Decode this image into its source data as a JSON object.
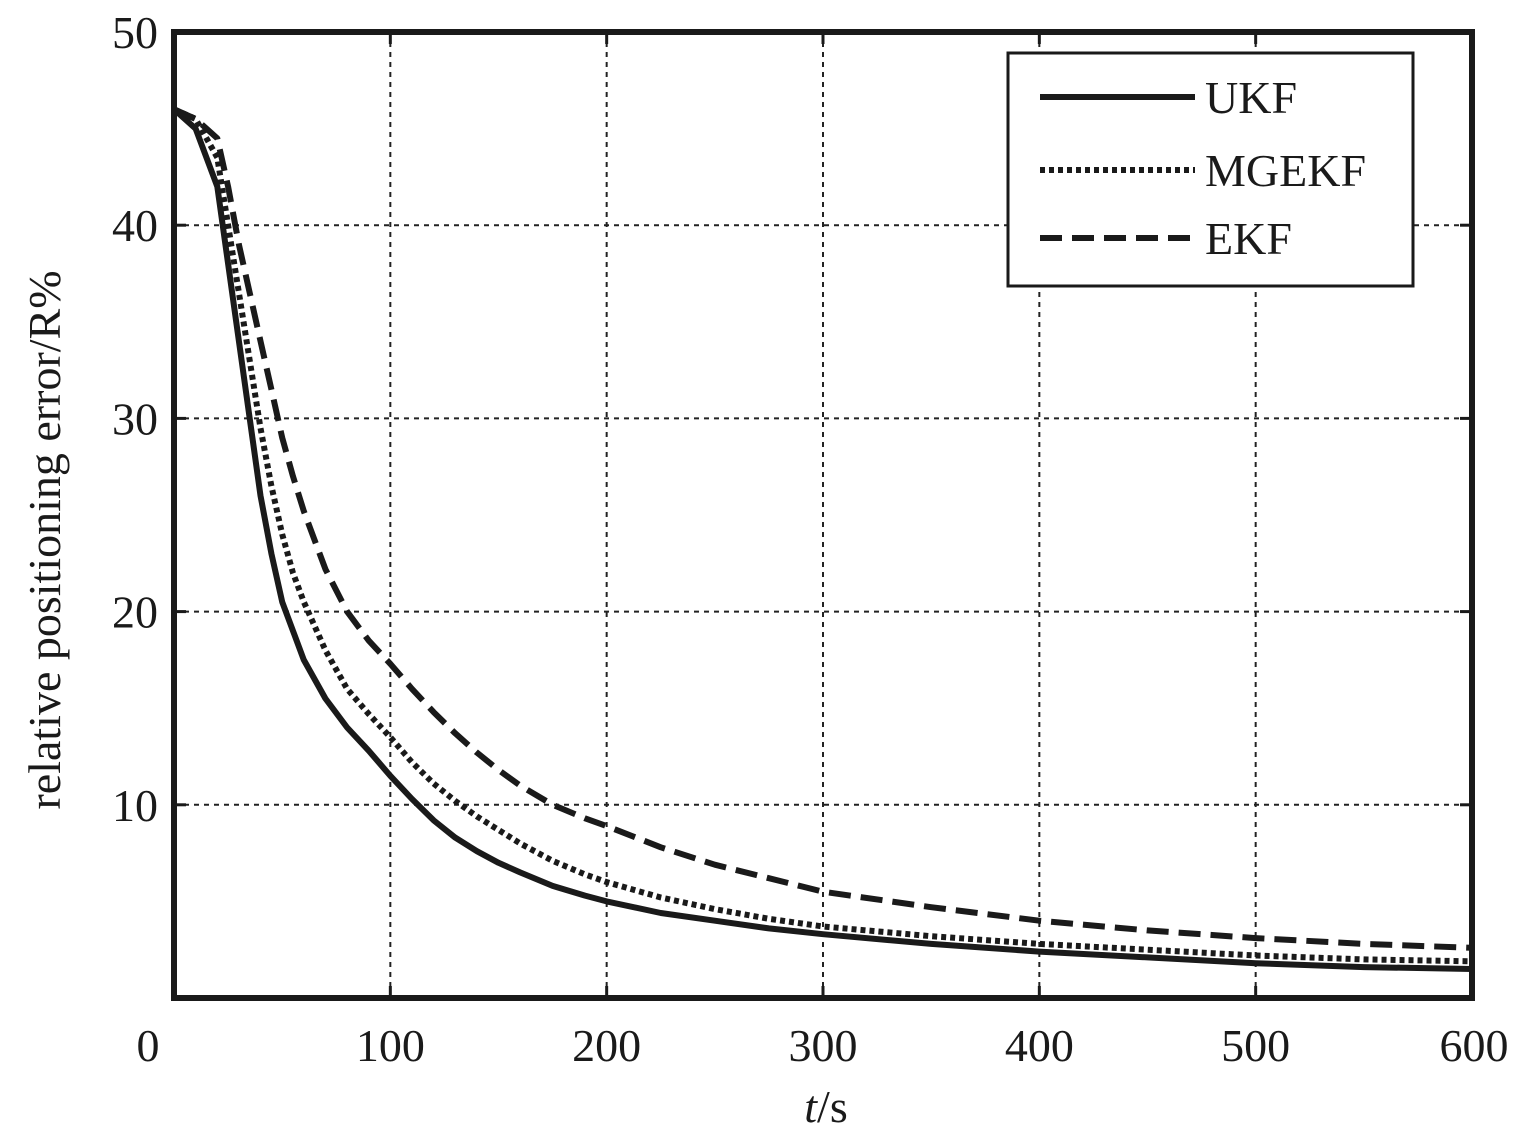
{
  "chart_data": {
    "type": "line",
    "title": "",
    "xlabel_italic": "t",
    "xlabel_rest": "/s",
    "ylabel": "relative positioning error/R%",
    "xlim": [
      0,
      600
    ],
    "ylim": [
      0,
      50
    ],
    "xticks": [
      "0",
      "100",
      "200",
      "300",
      "400",
      "500",
      "600"
    ],
    "yticks": [
      "10",
      "20",
      "30",
      "40",
      "50"
    ],
    "grid": true,
    "legend_position": "top-right",
    "series": [
      {
        "name": "UKF",
        "style": "solid",
        "color": "#1a1a1a",
        "x": [
          0,
          10,
          20,
          25,
          30,
          35,
          40,
          45,
          50,
          55,
          60,
          70,
          80,
          90,
          100,
          110,
          120,
          130,
          140,
          150,
          160,
          175,
          190,
          200,
          225,
          250,
          275,
          300,
          350,
          400,
          450,
          500,
          550,
          600
        ],
        "y": [
          46,
          45,
          42,
          38,
          34,
          30,
          26,
          23,
          20.5,
          19,
          17.5,
          15.5,
          14,
          12.8,
          11.5,
          10.3,
          9.2,
          8.3,
          7.6,
          7,
          6.5,
          5.8,
          5.3,
          5,
          4.4,
          4,
          3.6,
          3.3,
          2.8,
          2.4,
          2.1,
          1.8,
          1.6,
          1.5
        ]
      },
      {
        "name": "MGEKF",
        "style": "dotted",
        "color": "#1a1a1a",
        "x": [
          0,
          10,
          20,
          25,
          30,
          35,
          40,
          45,
          50,
          55,
          60,
          70,
          80,
          90,
          100,
          110,
          120,
          130,
          140,
          150,
          160,
          175,
          190,
          200,
          225,
          250,
          275,
          300,
          350,
          400,
          450,
          500,
          550,
          600
        ],
        "y": [
          46,
          45.5,
          43.5,
          40,
          36.5,
          33,
          29.5,
          26.5,
          24,
          22,
          20.5,
          18,
          16,
          14.7,
          13.5,
          12.2,
          11.1,
          10.2,
          9.4,
          8.7,
          8,
          7.1,
          6.4,
          6,
          5.2,
          4.6,
          4.1,
          3.7,
          3.2,
          2.8,
          2.5,
          2.2,
          2,
          1.9
        ]
      },
      {
        "name": "EKF",
        "style": "dashed",
        "color": "#1a1a1a",
        "x": [
          0,
          10,
          20,
          25,
          30,
          35,
          40,
          45,
          50,
          55,
          60,
          70,
          80,
          90,
          100,
          110,
          120,
          130,
          140,
          150,
          160,
          175,
          190,
          200,
          225,
          250,
          275,
          300,
          350,
          400,
          450,
          500,
          550,
          600
        ],
        "y": [
          46,
          45.5,
          44.5,
          42,
          39,
          36.5,
          34,
          31.5,
          29,
          27,
          25.2,
          22.2,
          20,
          18.5,
          17.3,
          16,
          14.8,
          13.7,
          12.7,
          11.8,
          11,
          10,
          9.3,
          8.9,
          7.8,
          6.9,
          6.2,
          5.5,
          4.7,
          4,
          3.5,
          3.1,
          2.8,
          2.6
        ]
      }
    ]
  }
}
